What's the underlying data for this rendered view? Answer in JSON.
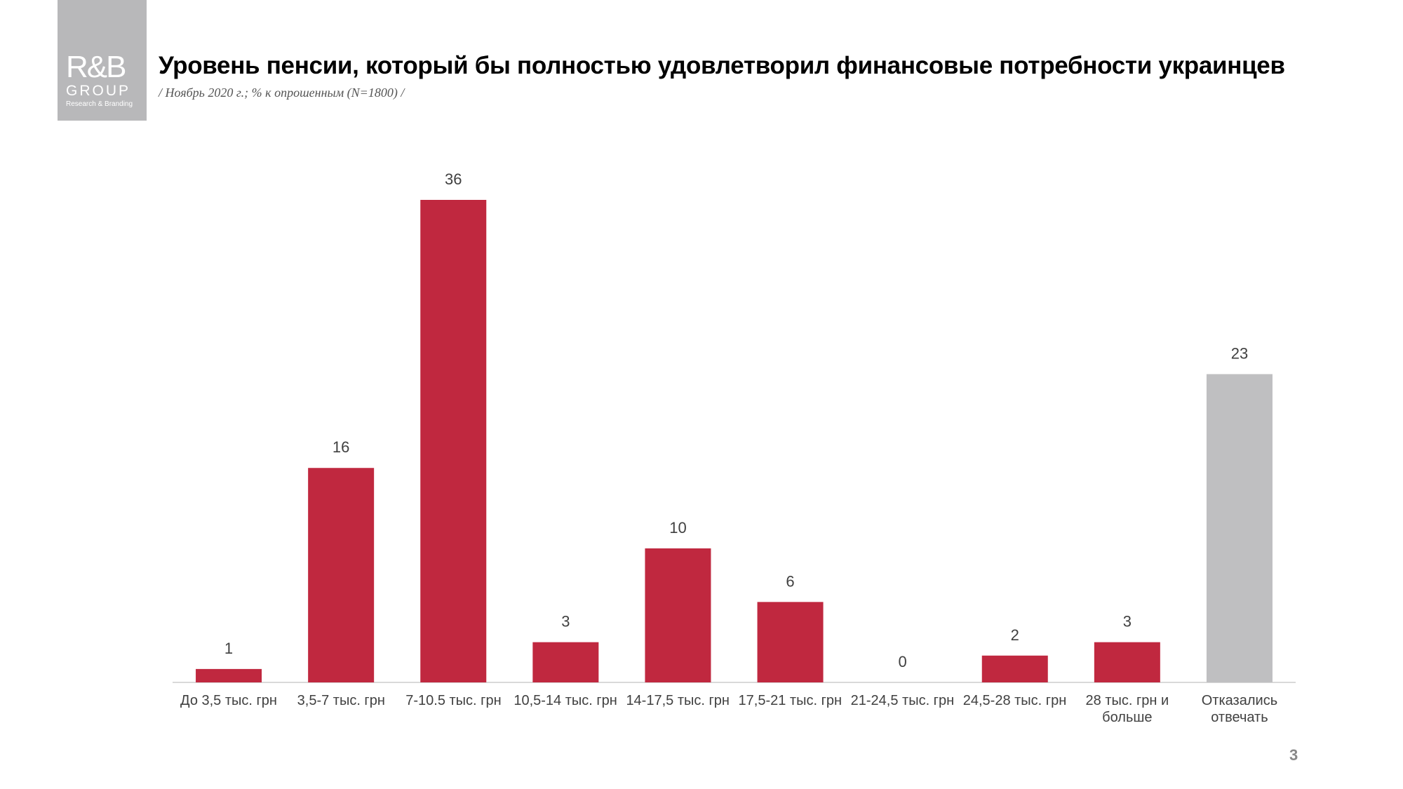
{
  "logo": {
    "brand": "R&B",
    "group": "GROUP",
    "tagline": "Research & Branding"
  },
  "page_number": 3,
  "chart_data": {
    "type": "bar",
    "title": "Уровень пенсии, который бы полностью удовлетворил финансовые потребности украинцев",
    "subtitle": "/ Ноябрь 2020 г.; % к опрошенным (N=1800) /",
    "categories": [
      "До 3,5 тыс. грн",
      "3,5-7 тыс. грн",
      "7-10.5 тыс. грн",
      "10,5-14 тыс. грн",
      "14-17,5 тыс. грн",
      "17,5-21 тыс. грн",
      "21-24,5 тыс. грн",
      "24,5-28 тыс. грн",
      "28 тыс. грн и больше",
      "Отказались отвечать"
    ],
    "values": [
      1,
      16,
      36,
      3,
      10,
      6,
      0,
      2,
      3,
      23
    ],
    "colors": [
      "#c0283f",
      "#c0283f",
      "#c0283f",
      "#c0283f",
      "#c0283f",
      "#c0283f",
      "#c0283f",
      "#c0283f",
      "#c0283f",
      "#bfbfc1"
    ]
  }
}
